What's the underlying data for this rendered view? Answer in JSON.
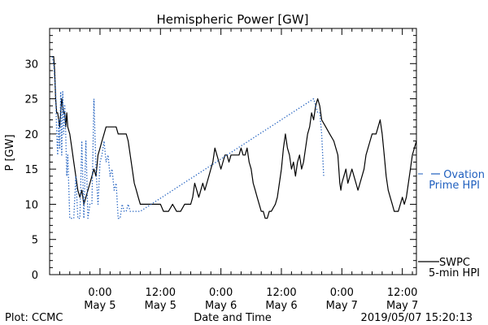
{
  "chart_data": {
    "type": "line",
    "title": "Hemispheric Power [GW]",
    "ylabel": "P [GW]",
    "xlabel": "Date and Time",
    "ylim": [
      0,
      35
    ],
    "xlim_hours": [
      -5.0,
      31.4
    ],
    "yticks": [
      0,
      5,
      10,
      15,
      20,
      25,
      30
    ],
    "xticks": [
      {
        "hour": 0,
        "time": "0:00",
        "date": "May 5"
      },
      {
        "hour": 6,
        "time": "12:00",
        "date": "May 5"
      },
      {
        "hour": 12,
        "time": "0:00",
        "date": "May 6"
      },
      {
        "hour": 18,
        "time": "12:00",
        "date": "May 6"
      },
      {
        "hour": 24,
        "time": "0:00",
        "date": "May 7"
      },
      {
        "hour": 30,
        "time": "12:00",
        "date": "May 7"
      }
    ],
    "series": [
      {
        "name": "SWPC 5-min HPI",
        "legend_lines": [
          "SWPC",
          "5-min HPI"
        ],
        "color": "#000000",
        "style": "solid",
        "points": [
          [
            -4.75,
            31
          ],
          [
            -4.6,
            31
          ],
          [
            -4.5,
            29
          ],
          [
            -4.4,
            25
          ],
          [
            -4.3,
            23
          ],
          [
            -4.2,
            23
          ],
          [
            -4.1,
            22
          ],
          [
            -4.0,
            21
          ],
          [
            -3.9,
            23
          ],
          [
            -3.8,
            25
          ],
          [
            -3.7,
            24
          ],
          [
            -3.6,
            23
          ],
          [
            -3.5,
            23
          ],
          [
            -3.4,
            21
          ],
          [
            -3.3,
            23
          ],
          [
            -3.2,
            21
          ],
          [
            -3.0,
            20
          ],
          [
            -2.8,
            18
          ],
          [
            -2.6,
            16
          ],
          [
            -2.4,
            14
          ],
          [
            -2.2,
            12
          ],
          [
            -2.0,
            11
          ],
          [
            -1.8,
            12
          ],
          [
            -1.6,
            10
          ],
          [
            -1.4,
            11
          ],
          [
            -1.2,
            12
          ],
          [
            -1.0,
            13
          ],
          [
            -0.8,
            14
          ],
          [
            -0.6,
            15
          ],
          [
            -0.4,
            14
          ],
          [
            -0.2,
            17
          ],
          [
            0.0,
            18
          ],
          [
            0.2,
            19
          ],
          [
            0.4,
            20
          ],
          [
            0.6,
            21
          ],
          [
            0.8,
            21
          ],
          [
            1.0,
            21
          ],
          [
            1.2,
            21
          ],
          [
            1.4,
            21
          ],
          [
            1.6,
            21
          ],
          [
            1.8,
            20
          ],
          [
            2.0,
            20
          ],
          [
            2.2,
            20
          ],
          [
            2.4,
            20
          ],
          [
            2.6,
            20
          ],
          [
            2.8,
            19
          ],
          [
            3.0,
            17
          ],
          [
            3.2,
            15
          ],
          [
            3.4,
            13
          ],
          [
            3.6,
            12
          ],
          [
            3.8,
            11
          ],
          [
            4.0,
            10
          ],
          [
            4.4,
            10
          ],
          [
            4.8,
            10
          ],
          [
            5.2,
            10
          ],
          [
            5.6,
            10
          ],
          [
            5.9,
            10
          ],
          [
            6.0,
            10
          ],
          [
            6.3,
            9
          ],
          [
            6.8,
            9
          ],
          [
            7.2,
            10
          ],
          [
            7.6,
            9
          ],
          [
            8.0,
            9
          ],
          [
            8.4,
            10
          ],
          [
            8.8,
            10
          ],
          [
            9.0,
            10
          ],
          [
            9.2,
            11
          ],
          [
            9.4,
            13
          ],
          [
            9.6,
            12
          ],
          [
            9.8,
            11
          ],
          [
            10.0,
            12
          ],
          [
            10.2,
            13
          ],
          [
            10.4,
            12
          ],
          [
            10.6,
            13
          ],
          [
            10.8,
            14
          ],
          [
            11.0,
            15
          ],
          [
            11.2,
            16
          ],
          [
            11.4,
            18
          ],
          [
            11.6,
            17
          ],
          [
            11.8,
            16
          ],
          [
            12.0,
            15
          ],
          [
            12.2,
            16
          ],
          [
            12.4,
            17
          ],
          [
            12.6,
            17
          ],
          [
            12.8,
            16
          ],
          [
            13.0,
            17
          ],
          [
            13.4,
            17
          ],
          [
            13.8,
            17
          ],
          [
            14.0,
            18
          ],
          [
            14.2,
            17
          ],
          [
            14.4,
            17
          ],
          [
            14.6,
            18
          ],
          [
            14.8,
            16
          ],
          [
            15.0,
            15
          ],
          [
            15.2,
            13
          ],
          [
            15.4,
            12
          ],
          [
            15.6,
            11
          ],
          [
            15.8,
            10
          ],
          [
            16.0,
            9
          ],
          [
            16.2,
            9
          ],
          [
            16.4,
            8
          ],
          [
            16.6,
            8
          ],
          [
            16.8,
            9
          ],
          [
            17.0,
            9
          ],
          [
            17.4,
            10
          ],
          [
            17.6,
            11
          ],
          [
            17.8,
            13
          ],
          [
            18.0,
            15
          ],
          [
            18.2,
            18
          ],
          [
            18.4,
            20
          ],
          [
            18.6,
            18
          ],
          [
            18.8,
            17
          ],
          [
            19.0,
            15
          ],
          [
            19.2,
            16
          ],
          [
            19.4,
            14
          ],
          [
            19.6,
            16
          ],
          [
            19.8,
            17
          ],
          [
            20.0,
            15
          ],
          [
            20.2,
            16
          ],
          [
            20.4,
            18
          ],
          [
            20.6,
            20
          ],
          [
            20.8,
            21
          ],
          [
            21.0,
            23
          ],
          [
            21.2,
            22
          ],
          [
            21.4,
            24
          ],
          [
            21.6,
            25
          ],
          [
            21.8,
            24
          ],
          [
            22.0,
            22
          ],
          [
            22.4,
            21
          ],
          [
            22.8,
            20
          ],
          [
            23.2,
            19
          ],
          [
            23.4,
            18
          ],
          [
            23.6,
            17
          ],
          [
            23.7,
            15
          ],
          [
            23.8,
            13
          ],
          [
            23.9,
            12
          ],
          [
            24.0,
            13
          ],
          [
            24.2,
            14
          ],
          [
            24.4,
            15
          ],
          [
            24.6,
            13
          ],
          [
            24.8,
            14
          ],
          [
            25.0,
            15
          ],
          [
            25.2,
            14
          ],
          [
            25.4,
            13
          ],
          [
            25.6,
            12
          ],
          [
            25.8,
            13
          ],
          [
            26.0,
            14
          ],
          [
            26.2,
            15
          ],
          [
            26.4,
            17
          ],
          [
            26.6,
            18
          ],
          [
            26.8,
            19
          ],
          [
            27.0,
            20
          ],
          [
            27.2,
            20
          ],
          [
            27.4,
            20
          ],
          [
            27.6,
            21
          ],
          [
            27.8,
            22
          ],
          [
            28.0,
            20
          ],
          [
            28.2,
            17
          ],
          [
            28.4,
            14
          ],
          [
            28.6,
            12
          ],
          [
            28.8,
            11
          ],
          [
            29.0,
            10
          ],
          [
            29.2,
            9
          ],
          [
            29.6,
            9
          ],
          [
            29.8,
            10
          ],
          [
            30.0,
            11
          ],
          [
            30.2,
            10
          ],
          [
            30.4,
            11
          ],
          [
            30.6,
            13
          ],
          [
            30.8,
            15
          ],
          [
            31.0,
            17
          ],
          [
            31.2,
            18
          ],
          [
            31.4,
            19
          ]
        ]
      },
      {
        "name": "Ovation Prime HPI",
        "legend_lines": [
          "Ovation",
          "Prime HPI"
        ],
        "color": "#1f5fbf",
        "style": "dotted",
        "points": [
          [
            -4.75,
            31
          ],
          [
            -4.6,
            30
          ],
          [
            -4.4,
            26
          ],
          [
            -4.3,
            20
          ],
          [
            -4.2,
            17
          ],
          [
            -4.1,
            22
          ],
          [
            -4.0,
            18
          ],
          [
            -3.9,
            26
          ],
          [
            -3.8,
            17
          ],
          [
            -3.7,
            26
          ],
          [
            -3.6,
            20
          ],
          [
            -3.5,
            24
          ],
          [
            -3.4,
            20
          ],
          [
            -3.3,
            14
          ],
          [
            -3.2,
            17
          ],
          [
            -3.0,
            8
          ],
          [
            -2.8,
            8
          ],
          [
            -2.6,
            8
          ],
          [
            -2.4,
            14
          ],
          [
            -2.2,
            8
          ],
          [
            -2.0,
            8
          ],
          [
            -1.8,
            19
          ],
          [
            -1.6,
            8
          ],
          [
            -1.4,
            19
          ],
          [
            -1.2,
            8
          ],
          [
            -1.0,
            10
          ],
          [
            -0.8,
            10
          ],
          [
            -0.6,
            25
          ],
          [
            -0.4,
            15
          ],
          [
            -0.2,
            10
          ],
          [
            0.0,
            16
          ],
          [
            0.2,
            17
          ],
          [
            0.4,
            19
          ],
          [
            0.6,
            16
          ],
          [
            0.8,
            17
          ],
          [
            1.0,
            14
          ],
          [
            1.2,
            15
          ],
          [
            1.4,
            12
          ],
          [
            1.6,
            13
          ],
          [
            1.8,
            8
          ],
          [
            2.0,
            8
          ],
          [
            2.2,
            10
          ],
          [
            2.4,
            9
          ],
          [
            2.6,
            9
          ],
          [
            2.8,
            10
          ],
          [
            3.0,
            9
          ],
          [
            3.6,
            9
          ],
          [
            4.0,
            9
          ],
          [
            21.2,
            25
          ],
          [
            21.4,
            24
          ],
          [
            21.6,
            23
          ],
          [
            21.8,
            23
          ],
          [
            22.0,
            20
          ],
          [
            22.2,
            14
          ]
        ]
      }
    ],
    "footer_left": "Plot: CCMC",
    "footer_right": "2019/05/07 15:20:13"
  }
}
